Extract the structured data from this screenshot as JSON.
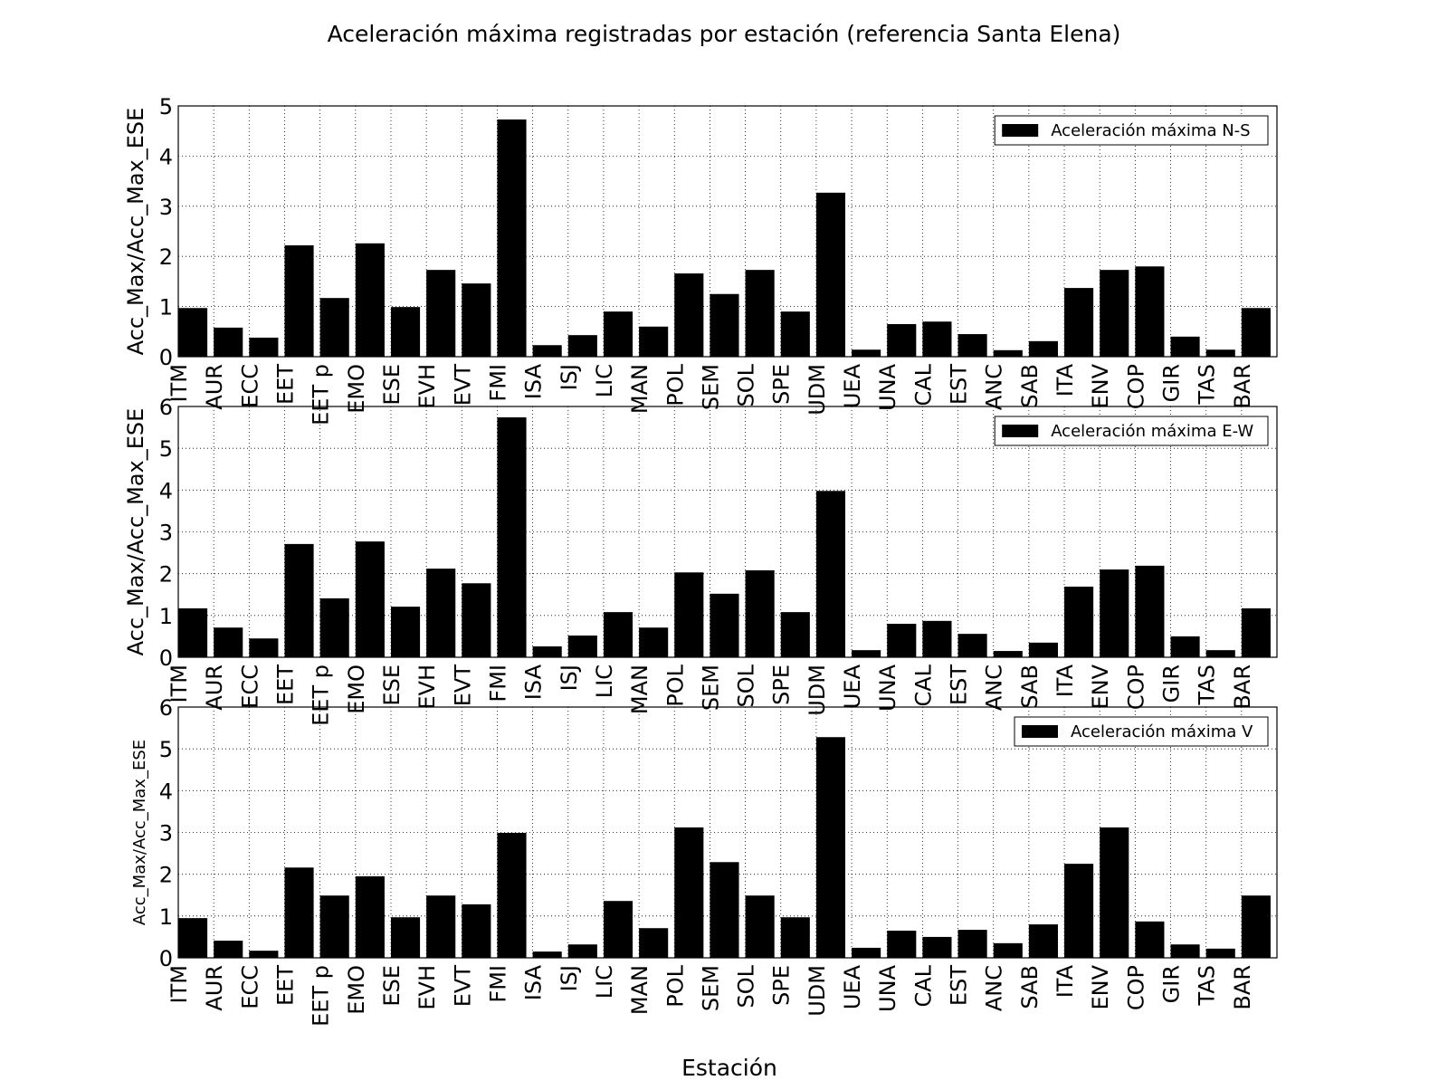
{
  "chart_data": {
    "title": "Aceleración máxima registradas por estación (referencia Santa Elena)",
    "xlabel": "Estación",
    "categories": [
      "ITM",
      "AUR",
      "ECC",
      "EET",
      "EET p",
      "EMO",
      "ESE",
      "EVH",
      "EVT",
      "FMI",
      "ISA",
      "ISJ",
      "LIC",
      "MAN",
      "POL",
      "SEM",
      "SOL",
      "SPE",
      "UDM",
      "UEA",
      "UNA",
      "CAL",
      "EST",
      "ANC",
      "SAB",
      "ITA",
      "ENV",
      "COP",
      "GIR",
      "TAS",
      "BAR"
    ],
    "panels": [
      {
        "type": "bar",
        "ylabel": "Acc_Max/Acc_Max_ESE",
        "ylim": [
          0,
          5
        ],
        "yticks": [
          "0",
          "1",
          "2",
          "3",
          "4",
          "5"
        ],
        "legend": "Aceleración máxima N-S",
        "legend_position": "top-right",
        "grid": true,
        "values": [
          0.97,
          0.58,
          0.38,
          2.22,
          1.17,
          2.26,
          0.99,
          1.73,
          1.46,
          4.73,
          0.23,
          0.43,
          0.9,
          0.6,
          1.66,
          1.25,
          1.73,
          0.9,
          3.27,
          0.14,
          0.65,
          0.7,
          0.45,
          0.13,
          0.31,
          1.37,
          1.73,
          1.8,
          0.4,
          0.14,
          0.97
        ]
      },
      {
        "type": "bar",
        "ylabel": "Acc_Max/Acc_Max_ESE",
        "ylim": [
          0,
          6
        ],
        "yticks": [
          "0",
          "1",
          "2",
          "3",
          "4",
          "5",
          "6"
        ],
        "legend": "Aceleración máxima E-W",
        "legend_position": "top-right",
        "grid": true,
        "values": [
          1.17,
          0.71,
          0.45,
          2.71,
          1.41,
          2.77,
          1.21,
          2.12,
          1.77,
          5.74,
          0.26,
          0.52,
          1.08,
          0.71,
          2.03,
          1.52,
          2.08,
          1.08,
          3.98,
          0.17,
          0.8,
          0.87,
          0.56,
          0.15,
          0.35,
          1.69,
          2.1,
          2.19,
          0.5,
          0.17,
          1.17
        ]
      },
      {
        "type": "bar",
        "ylabel": "Acc_Max/Acc_Max_ESE",
        "ylim": [
          0,
          6
        ],
        "yticks": [
          "0",
          "1",
          "2",
          "3",
          "4",
          "5",
          "6"
        ],
        "legend": "Aceleración máxima V",
        "legend_position": "top-right",
        "grid": true,
        "values": [
          0.95,
          0.41,
          0.17,
          2.16,
          1.49,
          1.95,
          0.97,
          1.49,
          1.28,
          2.99,
          0.15,
          0.32,
          1.36,
          0.71,
          3.12,
          2.29,
          1.49,
          0.97,
          5.28,
          0.24,
          0.65,
          0.5,
          0.67,
          0.35,
          0.8,
          2.25,
          3.12,
          0.87,
          0.32,
          0.22,
          1.49
        ]
      }
    ]
  }
}
